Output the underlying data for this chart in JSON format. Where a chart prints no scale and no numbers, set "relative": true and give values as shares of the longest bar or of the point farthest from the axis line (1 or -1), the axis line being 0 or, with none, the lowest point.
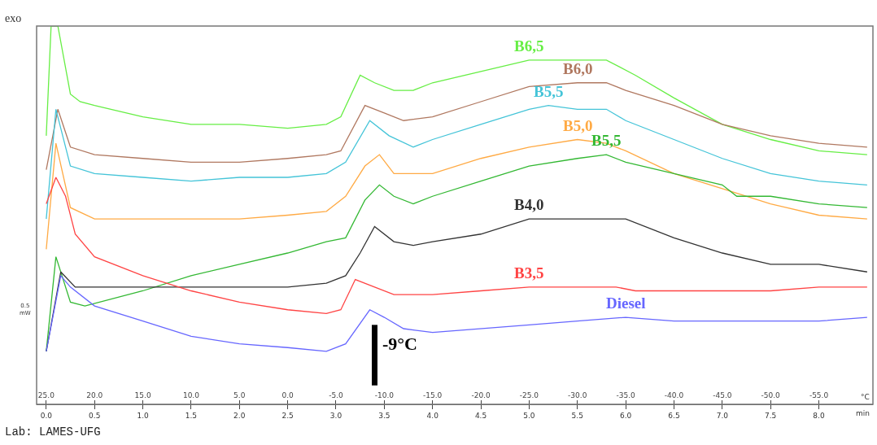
{
  "chart_data": {
    "type": "line",
    "relative": true,
    "xlabel": "°C",
    "x2label": "min",
    "xlim": [
      26,
      -60.6
    ],
    "xticks": [
      {
        "value": 25,
        "label": "25.0"
      },
      {
        "value": 20,
        "label": "20.0"
      },
      {
        "value": 15,
        "label": "15.0"
      },
      {
        "value": 10,
        "label": "10.0"
      },
      {
        "value": 5,
        "label": "5.0"
      },
      {
        "value": 0,
        "label": "0.0"
      },
      {
        "value": -5,
        "label": "-5.0"
      },
      {
        "value": -10,
        "label": "-10.0"
      },
      {
        "value": -15,
        "label": "-15.0"
      },
      {
        "value": -20,
        "label": "-20.0"
      },
      {
        "value": -25,
        "label": "-25.0"
      },
      {
        "value": -30,
        "label": "-30.0"
      },
      {
        "value": -35,
        "label": "-35.0"
      },
      {
        "value": -40,
        "label": "-40.0"
      },
      {
        "value": -45,
        "label": "-45.0"
      },
      {
        "value": -50,
        "label": "-50.0"
      },
      {
        "value": -55,
        "label": "-55.0"
      }
    ],
    "x2lim": [
      -0.1,
      8.56
    ],
    "x2ticks": [
      {
        "value": 0,
        "label": "0.0"
      },
      {
        "value": 0.5,
        "label": "0.5"
      },
      {
        "value": 1,
        "label": "1.0"
      },
      {
        "value": 1.5,
        "label": "1.5"
      },
      {
        "value": 2,
        "label": "2.0"
      },
      {
        "value": 2.5,
        "label": "2.5"
      },
      {
        "value": 3,
        "label": "3.0"
      },
      {
        "value": 3.5,
        "label": "3.5"
      },
      {
        "value": 4,
        "label": "4.0"
      },
      {
        "value": 4.5,
        "label": "4.5"
      },
      {
        "value": 5,
        "label": "5.0"
      },
      {
        "value": 5.5,
        "label": "5.5"
      },
      {
        "value": 6,
        "label": "6.0"
      },
      {
        "value": 6.5,
        "label": "6.5"
      },
      {
        "value": 7,
        "label": "7.0"
      },
      {
        "value": 7.5,
        "label": "7.5"
      },
      {
        "value": 8,
        "label": "8.0"
      }
    ],
    "legend": false,
    "marker": "none",
    "line_style": "solid",
    "series": [
      {
        "name": "B6,5",
        "color": "#66ee44",
        "x": [
          25,
          24.5,
          23.8,
          22.5,
          21.5,
          20,
          15,
          10,
          5,
          0,
          -4,
          -5.5,
          -7.5,
          -9,
          -11,
          -13,
          -15,
          -20,
          -25,
          -30,
          -33,
          -36,
          -40,
          -45,
          -50,
          -55,
          -60
        ],
        "values": [
          0.71,
          1,
          1,
          0.82,
          0.8,
          0.79,
          0.76,
          0.74,
          0.74,
          0.73,
          0.74,
          0.76,
          0.87,
          0.85,
          0.83,
          0.83,
          0.85,
          0.88,
          0.91,
          0.91,
          0.91,
          0.87,
          0.81,
          0.74,
          0.7,
          0.67,
          0.66
        ]
      },
      {
        "name": "B6,0",
        "color": "#b07860",
        "x": [
          25,
          23.8,
          22.5,
          20,
          15,
          10,
          5,
          0,
          -4,
          -5.5,
          -8,
          -10,
          -12,
          -15,
          -20,
          -25,
          -30,
          -33,
          -35,
          -40,
          -45,
          -50,
          -55,
          -60
        ],
        "values": [
          0.62,
          0.78,
          0.68,
          0.66,
          0.65,
          0.64,
          0.64,
          0.65,
          0.66,
          0.67,
          0.79,
          0.77,
          0.75,
          0.76,
          0.8,
          0.84,
          0.85,
          0.85,
          0.83,
          0.79,
          0.74,
          0.71,
          0.69,
          0.68
        ]
      },
      {
        "name": "B5,5",
        "color": "#44c4d8",
        "x": [
          25,
          24,
          22.5,
          20,
          15,
          10,
          5,
          0,
          -4,
          -6,
          -8.5,
          -10.5,
          -13,
          -15,
          -20,
          -25,
          -27,
          -30,
          -33,
          -35,
          -40,
          -45,
          -50,
          -55,
          -60
        ],
        "values": [
          0.49,
          0.78,
          0.63,
          0.61,
          0.6,
          0.59,
          0.6,
          0.6,
          0.61,
          0.64,
          0.75,
          0.71,
          0.68,
          0.7,
          0.74,
          0.78,
          0.79,
          0.78,
          0.78,
          0.75,
          0.7,
          0.65,
          0.61,
          0.59,
          0.58
        ]
      },
      {
        "name": "B5,0",
        "color": "#ffaa44",
        "x": [
          25,
          24,
          22.5,
          20,
          15,
          10,
          5,
          0,
          -4,
          -6,
          -8,
          -9.5,
          -11,
          -13,
          -15,
          -20,
          -25,
          -30,
          -33,
          -35,
          -40,
          -45,
          -50,
          -55,
          -60
        ],
        "values": [
          0.41,
          0.69,
          0.52,
          0.49,
          0.49,
          0.49,
          0.49,
          0.5,
          0.51,
          0.55,
          0.63,
          0.66,
          0.61,
          0.61,
          0.61,
          0.65,
          0.68,
          0.7,
          0.69,
          0.67,
          0.61,
          0.57,
          0.53,
          0.5,
          0.49
        ]
      },
      {
        "name": "B5,5",
        "color": "#33b833",
        "x": [
          25,
          24,
          22.5,
          21,
          15,
          10,
          5,
          0,
          -4,
          -6,
          -8,
          -9.5,
          -11,
          -13,
          -15,
          -20,
          -25,
          -30,
          -33,
          -35,
          -40,
          -45,
          -46.5,
          -50,
          -55,
          -60
        ],
        "values": [
          0.14,
          0.39,
          0.27,
          0.26,
          0.3,
          0.34,
          0.37,
          0.4,
          0.43,
          0.44,
          0.54,
          0.58,
          0.55,
          0.53,
          0.55,
          0.59,
          0.63,
          0.65,
          0.66,
          0.64,
          0.61,
          0.58,
          0.55,
          0.55,
          0.53,
          0.52
        ]
      },
      {
        "name": "B4,0",
        "color": "#333333",
        "x": [
          25,
          23.5,
          22,
          20,
          15,
          10,
          5,
          0,
          -4,
          -6,
          -7.5,
          -9,
          -11,
          -13,
          -15,
          -20,
          -25,
          -30,
          -33,
          -35,
          -40,
          -45,
          -50,
          -55,
          -60
        ],
        "values": [
          0.14,
          0.35,
          0.31,
          0.31,
          0.31,
          0.31,
          0.31,
          0.31,
          0.32,
          0.34,
          0.4,
          0.47,
          0.43,
          0.42,
          0.43,
          0.45,
          0.49,
          0.49,
          0.49,
          0.49,
          0.44,
          0.4,
          0.37,
          0.37,
          0.35
        ]
      },
      {
        "name": "B3,5",
        "color": "#ff4444",
        "x": [
          25,
          24,
          23,
          22,
          20,
          15,
          10,
          5,
          0,
          -4,
          -5.5,
          -7,
          -9,
          -11,
          -15,
          -20,
          -25,
          -30,
          -34,
          -36,
          -40,
          -45,
          -50,
          -55,
          -60
        ],
        "values": [
          0.53,
          0.6,
          0.55,
          0.45,
          0.39,
          0.34,
          0.3,
          0.27,
          0.25,
          0.24,
          0.25,
          0.33,
          0.31,
          0.29,
          0.29,
          0.3,
          0.31,
          0.31,
          0.31,
          0.3,
          0.3,
          0.3,
          0.3,
          0.31,
          0.31
        ]
      },
      {
        "name": "Diesel",
        "color": "#6666ff",
        "x": [
          25,
          23.5,
          22.5,
          20,
          15,
          10,
          5,
          0,
          -4,
          -6,
          -8.5,
          -10,
          -12,
          -15,
          -25,
          -30,
          -35,
          -40,
          -45,
          -50,
          -55,
          -60
        ],
        "values": [
          0.14,
          0.34,
          0.31,
          0.26,
          0.22,
          0.18,
          0.16,
          0.15,
          0.14,
          0.16,
          0.25,
          0.23,
          0.2,
          0.19,
          0.21,
          0.22,
          0.23,
          0.22,
          0.22,
          0.22,
          0.22,
          0.23
        ]
      }
    ],
    "ref_lines": [
      {
        "axis": "x",
        "value": -9,
        "label": "-9°C",
        "color": "#000000"
      }
    ],
    "annotations": [
      "exo",
      "0.5\nmW",
      "Lab: LAMES-UFG"
    ]
  }
}
